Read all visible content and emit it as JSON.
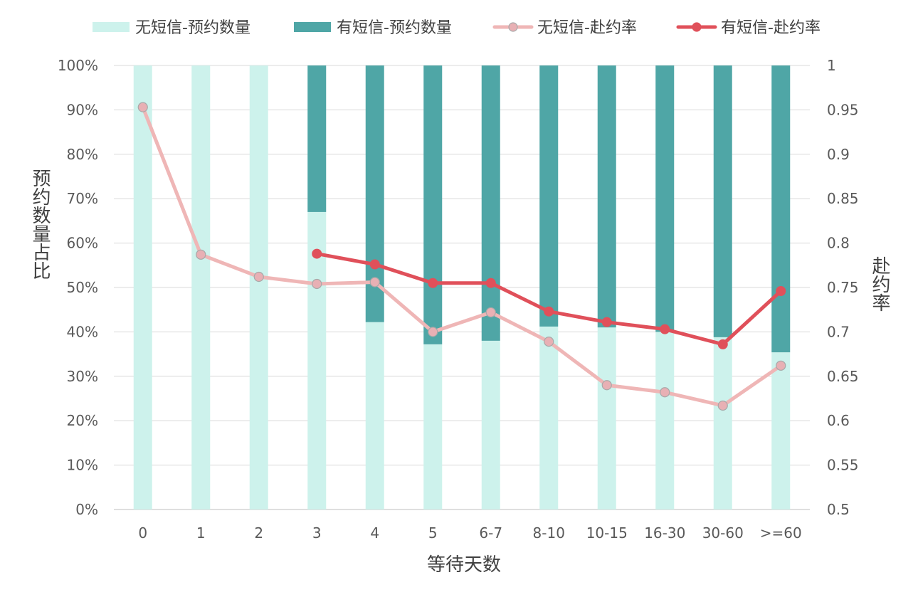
{
  "chart_data": {
    "type": "bar",
    "title": "",
    "xlabel": "等待天数",
    "ylabel": "预约数量占比",
    "y2label": "赴约率",
    "categories": [
      "0",
      "1",
      "2",
      "3",
      "4",
      "5",
      "6-7",
      "8-10",
      "10-15",
      "16-30",
      "30-60",
      ">=60"
    ],
    "ylim": [
      0,
      1
    ],
    "y2lim": [
      0.5,
      1
    ],
    "yticks": [
      "0%",
      "10%",
      "20%",
      "30%",
      "40%",
      "50%",
      "60%",
      "70%",
      "80%",
      "90%",
      "100%"
    ],
    "y2ticks": [
      "0.5",
      "0.55",
      "0.6",
      "0.65",
      "0.7",
      "0.75",
      "0.8",
      "0.85",
      "0.9",
      "0.95",
      "1"
    ],
    "grid": true,
    "legend_position": "top",
    "series": [
      {
        "name": "无短信-预约数量",
        "kind": "stacked-bar",
        "axis": "left",
        "color": "#cdf2ec",
        "values": [
          1.0,
          1.0,
          1.0,
          0.67,
          0.422,
          0.372,
          0.38,
          0.412,
          0.41,
          0.4,
          0.388,
          0.354
        ]
      },
      {
        "name": "有短信-预约数量",
        "kind": "stacked-bar",
        "axis": "left",
        "color": "#4fa6a6",
        "values": [
          0.0,
          0.0,
          0.0,
          0.33,
          0.578,
          0.628,
          0.62,
          0.588,
          0.59,
          0.6,
          0.612,
          0.646
        ]
      },
      {
        "name": "无短信-赴约率",
        "kind": "line",
        "axis": "right",
        "color": "#efb6b6",
        "marker_fill": "#e8b0b4",
        "values": [
          0.953,
          0.787,
          0.762,
          0.754,
          0.756,
          0.7,
          0.722,
          0.689,
          0.64,
          0.632,
          0.617,
          0.662
        ]
      },
      {
        "name": "有短信-赴约率",
        "kind": "line",
        "axis": "right",
        "color": "#e0505a",
        "marker_fill": "#e0505a",
        "values": [
          null,
          null,
          null,
          0.788,
          0.776,
          0.755,
          0.755,
          0.723,
          0.711,
          0.703,
          0.686,
          0.746
        ]
      }
    ]
  }
}
